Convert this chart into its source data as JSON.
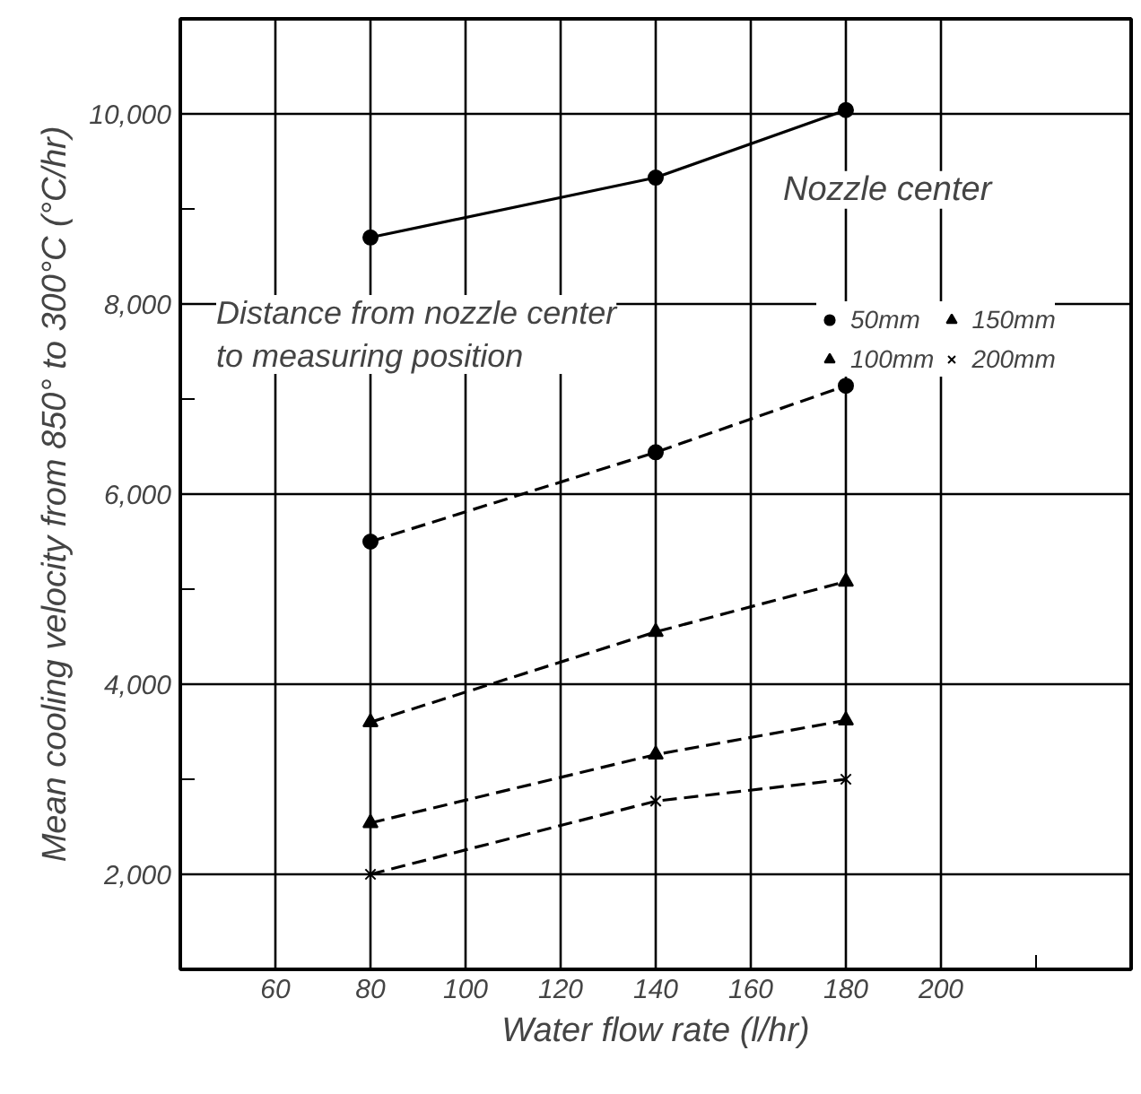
{
  "chart_data": {
    "type": "line",
    "xlabel": "Water flow rate (l/hr)",
    "ylabel": "Mean cooling velocity from 850° to 300°C (°C/hr)",
    "legend_title": "Distance from nozzle center\nto measuring position",
    "x": [
      80,
      140,
      180
    ],
    "series": [
      {
        "name": "Nozzle center",
        "color": "#000000",
        "marker": "circle",
        "line_style": "solid",
        "values": [
          8700,
          9330,
          10040
        ]
      },
      {
        "name": "50mm",
        "color": "#000000",
        "marker": "circle",
        "line_style": "dashed",
        "values": [
          5500,
          6440,
          7140
        ]
      },
      {
        "name": "100mm",
        "color": "#000000",
        "marker": "triangle",
        "line_style": "dashed",
        "values": [
          3600,
          4550,
          5080
        ]
      },
      {
        "name": "150mm",
        "color": "#000000",
        "marker": "triangle",
        "line_style": "dashed",
        "values": [
          2540,
          3260,
          3620
        ]
      },
      {
        "name": "200mm",
        "color": "#000000",
        "marker": "cross",
        "line_style": "dashed",
        "values": [
          2000,
          2770,
          3000
        ]
      }
    ],
    "xlim": [
      40,
      240
    ],
    "xticks": [
      60,
      80,
      100,
      120,
      140,
      160,
      180,
      200,
      {
        "value": 220,
        "label": null
      }
    ],
    "ylim": [
      1000,
      11000
    ],
    "yticks": [
      {
        "value": 2000,
        "label": "2,000"
      },
      {
        "value": 3000,
        "label": null
      },
      {
        "value": 4000,
        "label": "4,000"
      },
      {
        "value": 5000,
        "label": null
      },
      {
        "value": 6000,
        "label": "6,000"
      },
      {
        "value": 7000,
        "label": null
      },
      {
        "value": 8000,
        "label": "8,000"
      },
      {
        "value": 9000,
        "label": null
      },
      {
        "value": 10000,
        "label": "10,000"
      }
    ],
    "grid": true,
    "legend": "right"
  }
}
